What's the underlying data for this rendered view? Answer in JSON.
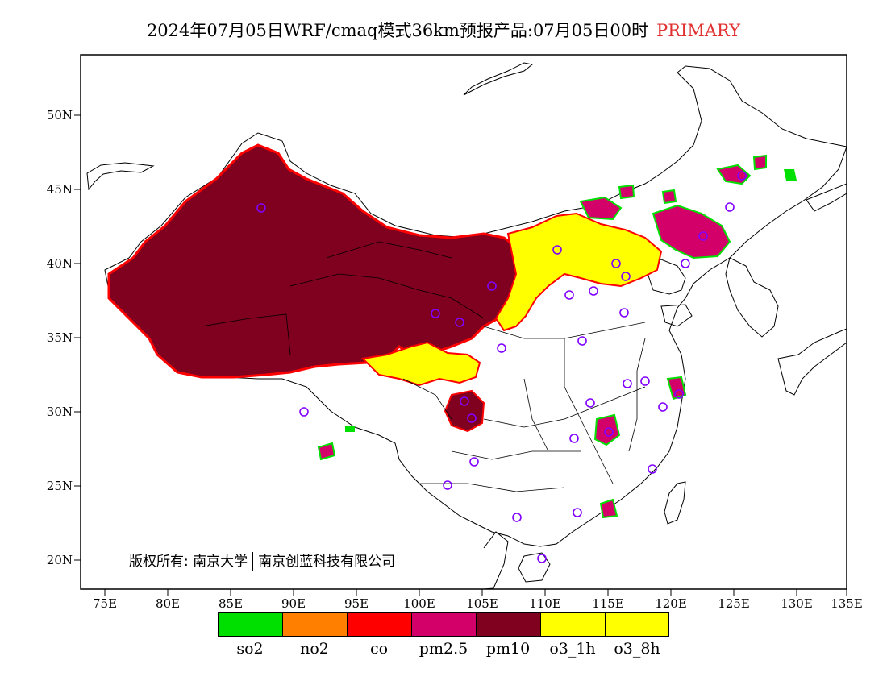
{
  "title": {
    "main": "2024年07月05日WRF/cmaq模式36km预报产品:07月05日00时",
    "flag": "PRIMARY"
  },
  "axes": {
    "lat_labels": [
      "50N",
      "45N",
      "40N",
      "35N",
      "30N",
      "25N",
      "20N"
    ],
    "lon_labels": [
      "75E",
      "80E",
      "85E",
      "90E",
      "95E",
      "100E",
      "105E",
      "110E",
      "115E",
      "120E",
      "125E",
      "130E",
      "135E"
    ]
  },
  "copyright": {
    "prefix": "版权所有: 南京大学",
    "suffix": "南京创蓝科技有限公司"
  },
  "legend": [
    {
      "label": "so2",
      "color": "#00e000"
    },
    {
      "label": "no2",
      "color": "#ff8000"
    },
    {
      "label": "co",
      "color": "#ff0000"
    },
    {
      "label": "pm2.5",
      "color": "#d4006a"
    },
    {
      "label": "pm10",
      "color": "#800020"
    },
    {
      "label": "o3_1h",
      "color": "#ffff00"
    },
    {
      "label": "o3_8h",
      "color": "#ffff00"
    }
  ],
  "colors": {
    "pm10": "#800020",
    "pm25": "#d4006a",
    "o3": "#ffff00",
    "co": "#ff0000",
    "so2": "#00e000",
    "no2": "#ff8000",
    "city_marker": "#8000ff"
  }
}
